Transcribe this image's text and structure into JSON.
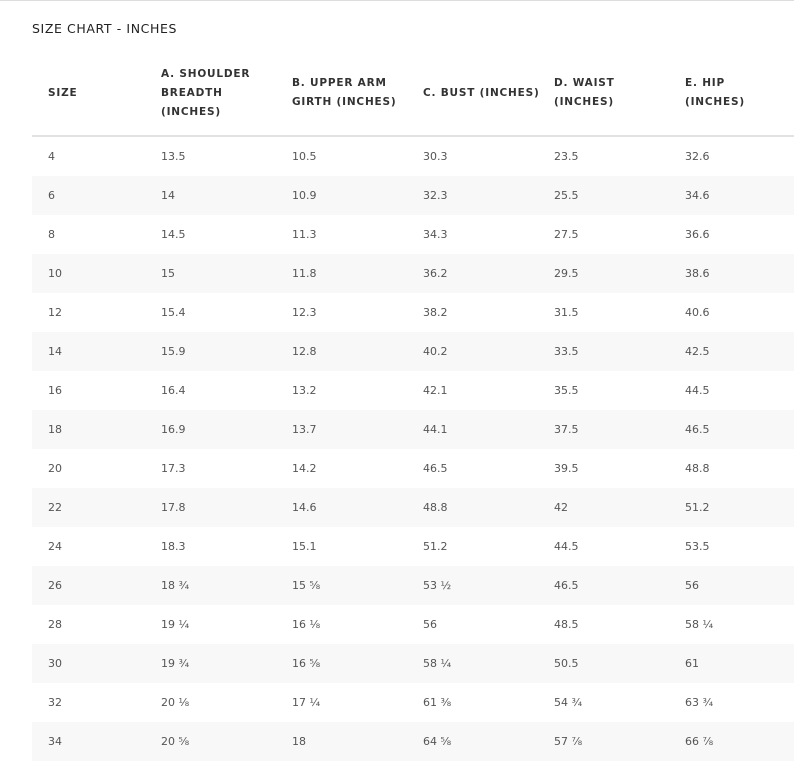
{
  "title": "SIZE CHART - INCHES",
  "table": {
    "header": [
      "SIZE",
      "A. SHOULDER BREADTH (INCHES)",
      "B. UPPER ARM GIRTH (INCHES)",
      "C. BUST (INCHES)",
      "D. WAIST (INCHES)",
      "E. HIP (INCHES)"
    ],
    "rows": [
      [
        "4",
        "13.5",
        "10.5",
        "30.3",
        "23.5",
        "32.6"
      ],
      [
        "6",
        "14",
        "10.9",
        "32.3",
        "25.5",
        "34.6"
      ],
      [
        "8",
        "14.5",
        "11.3",
        "34.3",
        "27.5",
        "36.6"
      ],
      [
        "10",
        "15",
        "11.8",
        "36.2",
        "29.5",
        "38.6"
      ],
      [
        "12",
        "15.4",
        "12.3",
        "38.2",
        "31.5",
        "40.6"
      ],
      [
        "14",
        "15.9",
        "12.8",
        "40.2",
        "33.5",
        "42.5"
      ],
      [
        "16",
        "16.4",
        "13.2",
        "42.1",
        "35.5",
        "44.5"
      ],
      [
        "18",
        "16.9",
        "13.7",
        "44.1",
        "37.5",
        "46.5"
      ],
      [
        "20",
        "17.3",
        "14.2",
        "46.5",
        "39.5",
        "48.8"
      ],
      [
        "22",
        "17.8",
        "14.6",
        "48.8",
        "42",
        "51.2"
      ],
      [
        "24",
        "18.3",
        "15.1",
        "51.2",
        "44.5",
        "53.5"
      ],
      [
        "26",
        "18 ¾",
        "15 ⅝",
        "53 ½",
        "46.5",
        "56"
      ],
      [
        "28",
        "19 ¼",
        "16 ⅛",
        "56",
        "48.5",
        "58 ¼"
      ],
      [
        "30",
        "19 ¾",
        "16 ⅝",
        "58 ¼",
        "50.5",
        "61"
      ],
      [
        "32",
        "20 ⅛",
        "17 ¼",
        "61 ⅜",
        "54 ¾",
        "63 ¾"
      ],
      [
        "34",
        "20 ⅝",
        "18",
        "64 ⅝",
        "57 ⅞",
        "66 ⅞"
      ]
    ]
  }
}
